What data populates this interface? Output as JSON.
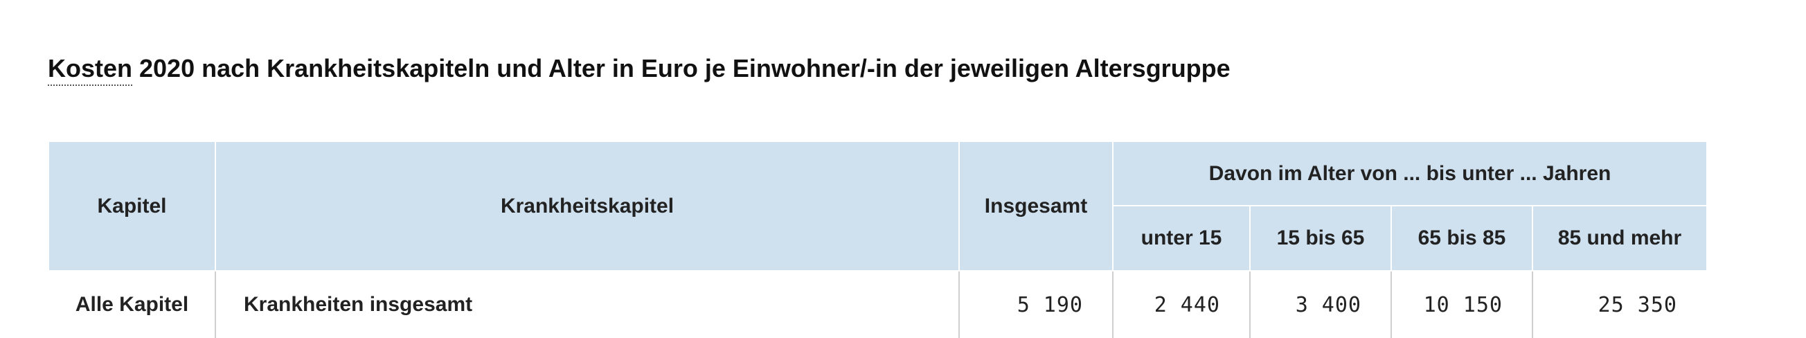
{
  "title": {
    "abbr_word": "Kosten",
    "rest": " 2020 nach Krankheitskapiteln und Alter in Euro je Einwohner/-in der jeweiligen Altersgruppe"
  },
  "table": {
    "headers": {
      "kapitel": "Kapitel",
      "krankheitskapitel": "Krankheitskapitel",
      "insgesamt": "Insgesamt",
      "group": "Davon im Alter von ... bis unter ... Jahren",
      "age_groups": [
        "unter 15",
        "15 bis 65",
        "65 bis 85",
        "85 und mehr"
      ]
    },
    "rows": [
      {
        "kapitel": "Alle Kapitel",
        "krankheitskapitel": "Krankheiten insgesamt",
        "insgesamt": "5 190",
        "ages": [
          "2 440",
          "3 400",
          "10 150",
          "25 350"
        ]
      }
    ]
  }
}
